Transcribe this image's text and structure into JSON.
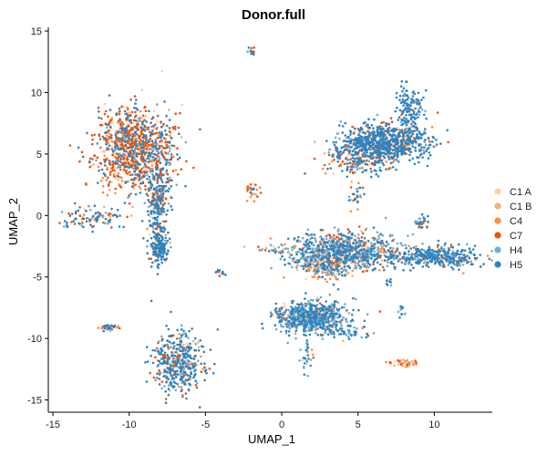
{
  "chart_data": {
    "type": "scatter",
    "title": "Donor.full",
    "xlabel": "UMAP_1",
    "ylabel": "UMAP_2",
    "xlim": [
      -15.3,
      13.8
    ],
    "ylim": [
      -16,
      15.3
    ],
    "xticks": [
      -15,
      -10,
      -5,
      0,
      5,
      10
    ],
    "yticks": [
      -15,
      -10,
      -5,
      0,
      5,
      10,
      15
    ],
    "grid": false,
    "legend_position": "right",
    "series": [
      {
        "name": "C1 A",
        "color": "#fdd0a2"
      },
      {
        "name": "C1 B",
        "color": "#fdae6b"
      },
      {
        "name": "C4",
        "color": "#fd8d3c"
      },
      {
        "name": "C7",
        "color": "#e6550d"
      },
      {
        "name": "H4",
        "color": "#6baed6"
      },
      {
        "name": "H5",
        "color": "#3182bd"
      }
    ],
    "clusters": [
      {
        "cx": -9.6,
        "cy": 5.4,
        "sx": 1.3,
        "sy": 1.7,
        "n": 950,
        "mix": [
          0.04,
          0.05,
          0.1,
          0.45,
          0.08,
          0.28
        ]
      },
      {
        "cx": -8.1,
        "cy": 0.5,
        "sx": 0.35,
        "sy": 1.9,
        "n": 260,
        "mix": [
          0.02,
          0.03,
          0.05,
          0.18,
          0.12,
          0.6
        ]
      },
      {
        "cx": -8.0,
        "cy": -2.8,
        "sx": 0.3,
        "sy": 0.6,
        "n": 140,
        "mix": [
          0.01,
          0.02,
          0.03,
          0.1,
          0.14,
          0.7
        ]
      },
      {
        "cx": -12.2,
        "cy": -0.1,
        "sx": 1.0,
        "sy": 0.45,
        "n": 90,
        "mix": [
          0.02,
          0.03,
          0.05,
          0.2,
          0.2,
          0.5
        ]
      },
      {
        "cx": -14.1,
        "cy": -0.7,
        "sx": 0.2,
        "sy": 0.15,
        "n": 6,
        "mix": [
          0,
          0,
          0,
          0,
          0.2,
          0.8
        ]
      },
      {
        "cx": 6.6,
        "cy": 6.0,
        "sx": 1.5,
        "sy": 0.75,
        "n": 780,
        "mix": [
          0.02,
          0.03,
          0.05,
          0.08,
          0.12,
          0.7
        ]
      },
      {
        "cx": 8.5,
        "cy": 8.8,
        "sx": 0.45,
        "sy": 0.9,
        "n": 120,
        "mix": [
          0.01,
          0.01,
          0.03,
          0.05,
          0.1,
          0.8
        ]
      },
      {
        "cx": 5.2,
        "cy": 4.4,
        "sx": 1.1,
        "sy": 0.6,
        "n": 180,
        "mix": [
          0.05,
          0.08,
          0.15,
          0.22,
          0.15,
          0.35
        ]
      },
      {
        "cx": 4.8,
        "cy": 1.7,
        "sx": 0.25,
        "sy": 0.6,
        "n": 25,
        "mix": [
          0.05,
          0.05,
          0.1,
          0.1,
          0.3,
          0.4
        ]
      },
      {
        "cx": 4.0,
        "cy": -2.9,
        "sx": 1.9,
        "sy": 0.75,
        "n": 900,
        "mix": [
          0.04,
          0.07,
          0.1,
          0.1,
          0.34,
          0.35
        ]
      },
      {
        "cx": 2.9,
        "cy": -4.2,
        "sx": 0.8,
        "sy": 0.5,
        "n": 150,
        "mix": [
          0.05,
          0.15,
          0.35,
          0.1,
          0.2,
          0.15
        ]
      },
      {
        "cx": 10.0,
        "cy": -3.4,
        "sx": 1.6,
        "sy": 0.45,
        "n": 360,
        "mix": [
          0.02,
          0.03,
          0.05,
          0.08,
          0.2,
          0.62
        ]
      },
      {
        "cx": 9.1,
        "cy": -0.6,
        "sx": 0.25,
        "sy": 0.35,
        "n": 30,
        "mix": [
          0.05,
          0.05,
          0.1,
          0.2,
          0.2,
          0.4
        ]
      },
      {
        "cx": 1.9,
        "cy": -8.3,
        "sx": 1.2,
        "sy": 0.65,
        "n": 700,
        "mix": [
          0.02,
          0.03,
          0.05,
          0.05,
          0.4,
          0.45
        ]
      },
      {
        "cx": 4.4,
        "cy": -9.6,
        "sx": 0.6,
        "sy": 0.25,
        "n": 40,
        "mix": [
          0.02,
          0.02,
          0.05,
          0.05,
          0.4,
          0.46
        ]
      },
      {
        "cx": 1.6,
        "cy": -11.5,
        "sx": 0.2,
        "sy": 0.8,
        "n": 30,
        "mix": [
          0.02,
          0.02,
          0.05,
          0.05,
          0.3,
          0.56
        ]
      },
      {
        "cx": -6.8,
        "cy": -12.0,
        "sx": 0.8,
        "sy": 1.3,
        "n": 420,
        "mix": [
          0.02,
          0.03,
          0.05,
          0.2,
          0.15,
          0.55
        ]
      },
      {
        "cx": -11.2,
        "cy": -9.1,
        "sx": 0.35,
        "sy": 0.12,
        "n": 35,
        "mix": [
          0.05,
          0.05,
          0.15,
          0.2,
          0.2,
          0.35
        ]
      },
      {
        "cx": -2.1,
        "cy": 2.0,
        "sx": 0.3,
        "sy": 0.35,
        "n": 30,
        "mix": [
          0.1,
          0.15,
          0.3,
          0.3,
          0.05,
          0.1
        ]
      },
      {
        "cx": -2.0,
        "cy": 13.4,
        "sx": 0.12,
        "sy": 0.12,
        "n": 12,
        "mix": [
          0,
          0,
          0,
          0.3,
          0.3,
          0.4
        ]
      },
      {
        "cx": -4.0,
        "cy": -4.7,
        "sx": 0.2,
        "sy": 0.15,
        "n": 10,
        "mix": [
          0,
          0,
          0,
          0.2,
          0.3,
          0.5
        ]
      },
      {
        "cx": -1.3,
        "cy": -2.7,
        "sx": 0.15,
        "sy": 0.1,
        "n": 8,
        "mix": [
          0,
          0.1,
          0.2,
          0.5,
          0.1,
          0.1
        ]
      },
      {
        "cx": 8.1,
        "cy": -12.0,
        "sx": 0.55,
        "sy": 0.15,
        "n": 40,
        "mix": [
          0.15,
          0.3,
          0.3,
          0.2,
          0.02,
          0.03
        ]
      },
      {
        "cx": 7.9,
        "cy": -7.8,
        "sx": 0.15,
        "sy": 0.3,
        "n": 12,
        "mix": [
          0,
          0,
          0,
          0,
          0.4,
          0.6
        ]
      },
      {
        "cx": 7.0,
        "cy": -5.3,
        "sx": 0.15,
        "sy": 0.25,
        "n": 8,
        "mix": [
          0,
          0,
          0,
          0,
          0.4,
          0.6
        ]
      }
    ]
  }
}
